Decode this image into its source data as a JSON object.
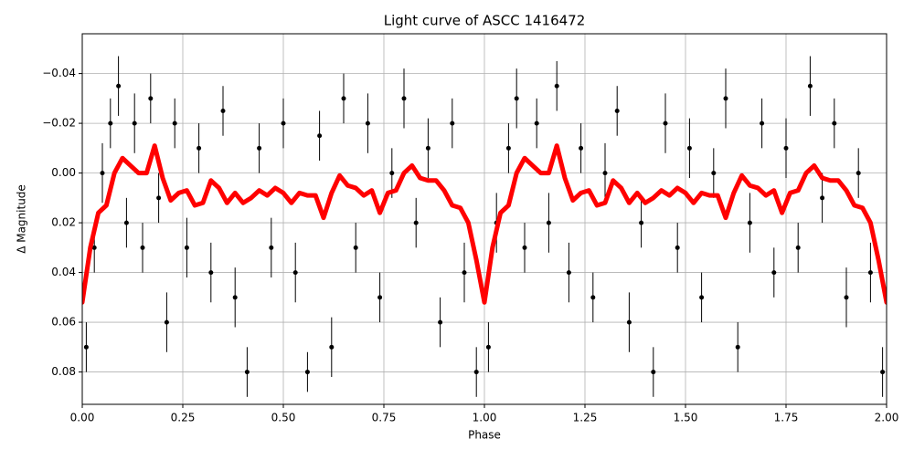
{
  "chart_data": {
    "type": "scatter",
    "title": "Light curve of ASCC 1416472",
    "xlabel": "Phase",
    "ylabel": "Δ Magnitude",
    "xlim": [
      0,
      2
    ],
    "ylim": [
      0.093,
      -0.056
    ],
    "grid": true,
    "xticks": [
      {
        "value": 0,
        "label": "0.00"
      },
      0.25,
      {
        "value": 0.5,
        "label": "0.50"
      },
      0.75,
      {
        "value": 1,
        "label": "1.00"
      },
      1.25,
      {
        "value": 1.5,
        "label": "1.50"
      },
      1.75,
      {
        "value": 2,
        "label": "2.00"
      }
    ],
    "yticks": [
      {
        "value": -0.04,
        "label": "−0.04"
      },
      {
        "value": -0.02,
        "label": "−0.02"
      },
      {
        "value": 0,
        "label": "0.00"
      },
      0.02,
      0.04,
      0.06,
      0.08
    ],
    "points": {
      "color": "#000000",
      "x": [
        0.01,
        0.03,
        0.05,
        0.07,
        0.09,
        0.11,
        0.13,
        0.15,
        0.17,
        0.19,
        0.21,
        0.23,
        0.26,
        0.29,
        0.32,
        0.35,
        0.38,
        0.41,
        0.44,
        0.47,
        0.5,
        0.53,
        0.56,
        0.59,
        0.62,
        0.65,
        0.68,
        0.71,
        0.74,
        0.77,
        0.8,
        0.83,
        0.86,
        0.89,
        0.92,
        0.95,
        0.98,
        1.01,
        1.03,
        1.06,
        1.08,
        1.1,
        1.13,
        1.16,
        1.18,
        1.21,
        1.24,
        1.27,
        1.3,
        1.33,
        1.36,
        1.39,
        1.42,
        1.45,
        1.48,
        1.51,
        1.54,
        1.57,
        1.6,
        1.63,
        1.66,
        1.69,
        1.72,
        1.75,
        1.78,
        1.81,
        1.84,
        1.87,
        1.9,
        1.93,
        1.96,
        1.99
      ],
      "values": [
        0.07,
        0.03,
        0.0,
        -0.02,
        -0.035,
        0.02,
        -0.02,
        0.03,
        -0.03,
        0.01,
        0.06,
        -0.02,
        0.03,
        -0.01,
        0.04,
        -0.025,
        0.05,
        0.08,
        -0.01,
        0.03,
        -0.02,
        0.04,
        0.08,
        -0.015,
        0.07,
        -0.03,
        0.03,
        -0.02,
        0.05,
        0.0,
        -0.03,
        0.02,
        -0.01,
        0.06,
        -0.02,
        0.04,
        0.08,
        0.07,
        0.02,
        -0.01,
        -0.03,
        0.03,
        -0.02,
        0.02,
        -0.035,
        0.04,
        -0.01,
        0.05,
        0.0,
        -0.025,
        0.06,
        0.02,
        0.08,
        -0.02,
        0.03,
        -0.01,
        0.05,
        0.0,
        -0.03,
        0.07,
        0.02,
        -0.02,
        0.04,
        -0.01,
        0.03,
        -0.035,
        0.01,
        -0.02,
        0.05,
        0.0,
        0.04,
        0.08
      ],
      "errors": [
        0.01,
        0.01,
        0.012,
        0.01,
        0.012,
        0.01,
        0.012,
        0.01,
        0.01,
        0.01,
        0.012,
        0.01,
        0.012,
        0.01,
        0.012,
        0.01,
        0.012,
        0.01,
        0.01,
        0.012,
        0.01,
        0.012,
        0.008,
        0.01,
        0.012,
        0.01,
        0.01,
        0.012,
        0.01,
        0.01,
        0.012,
        0.01,
        0.012,
        0.01,
        0.01,
        0.012,
        0.01,
        0.01,
        0.012,
        0.01,
        0.012,
        0.01,
        0.01,
        0.012,
        0.01,
        0.012,
        0.01,
        0.01,
        0.012,
        0.01,
        0.012,
        0.01,
        0.01,
        0.012,
        0.01,
        0.012,
        0.01,
        0.01,
        0.012,
        0.01,
        0.012,
        0.01,
        0.01,
        0.012,
        0.01,
        0.012,
        0.01,
        0.01,
        0.012,
        0.01,
        0.012,
        0.01
      ]
    },
    "curve": {
      "color": "#ff0000",
      "x": [
        0,
        0.02,
        0.04,
        0.06,
        0.08,
        0.1,
        0.12,
        0.14,
        0.16,
        0.18,
        0.2,
        0.22,
        0.24,
        0.26,
        0.28,
        0.3,
        0.32,
        0.34,
        0.36,
        0.38,
        0.4,
        0.42,
        0.44,
        0.46,
        0.48,
        0.5,
        0.52,
        0.54,
        0.56,
        0.58,
        0.6,
        0.62,
        0.64,
        0.66,
        0.68,
        0.7,
        0.72,
        0.74,
        0.76,
        0.78,
        0.8,
        0.82,
        0.84,
        0.86,
        0.88,
        0.9,
        0.92,
        0.94,
        0.96,
        0.98,
        1,
        1.02,
        1.04,
        1.06,
        1.08,
        1.1,
        1.12,
        1.14,
        1.16,
        1.18,
        1.2,
        1.22,
        1.24,
        1.26,
        1.28,
        1.3,
        1.32,
        1.34,
        1.36,
        1.38,
        1.4,
        1.42,
        1.44,
        1.46,
        1.48,
        1.5,
        1.52,
        1.54,
        1.56,
        1.58,
        1.6,
        1.62,
        1.64,
        1.66,
        1.68,
        1.7,
        1.72,
        1.74,
        1.76,
        1.78,
        1.8,
        1.82,
        1.84,
        1.86,
        1.88,
        1.9,
        1.92,
        1.94,
        1.96,
        1.98,
        2
      ],
      "values": [
        0.052,
        0.03,
        0.016,
        0.013,
        0.0,
        -0.006,
        -0.003,
        0.0,
        0.0,
        -0.011,
        0.002,
        0.011,
        0.008,
        0.007,
        0.013,
        0.012,
        0.003,
        0.006,
        0.012,
        0.008,
        0.012,
        0.01,
        0.007,
        0.009,
        0.006,
        0.008,
        0.012,
        0.008,
        0.009,
        0.009,
        0.018,
        0.008,
        0.001,
        0.005,
        0.006,
        0.009,
        0.007,
        0.016,
        0.008,
        0.007,
        0.0,
        -0.003,
        0.002,
        0.003,
        0.003,
        0.007,
        0.013,
        0.014,
        0.02,
        0.035,
        0.052,
        0.03,
        0.016,
        0.013,
        0.0,
        -0.006,
        -0.003,
        0.0,
        0.0,
        -0.011,
        0.002,
        0.011,
        0.008,
        0.007,
        0.013,
        0.012,
        0.003,
        0.006,
        0.012,
        0.008,
        0.012,
        0.01,
        0.007,
        0.009,
        0.006,
        0.008,
        0.012,
        0.008,
        0.009,
        0.009,
        0.018,
        0.008,
        0.001,
        0.005,
        0.006,
        0.009,
        0.007,
        0.016,
        0.008,
        0.007,
        0.0,
        -0.003,
        0.002,
        0.003,
        0.003,
        0.007,
        0.013,
        0.014,
        0.02,
        0.035,
        0.052
      ]
    }
  }
}
